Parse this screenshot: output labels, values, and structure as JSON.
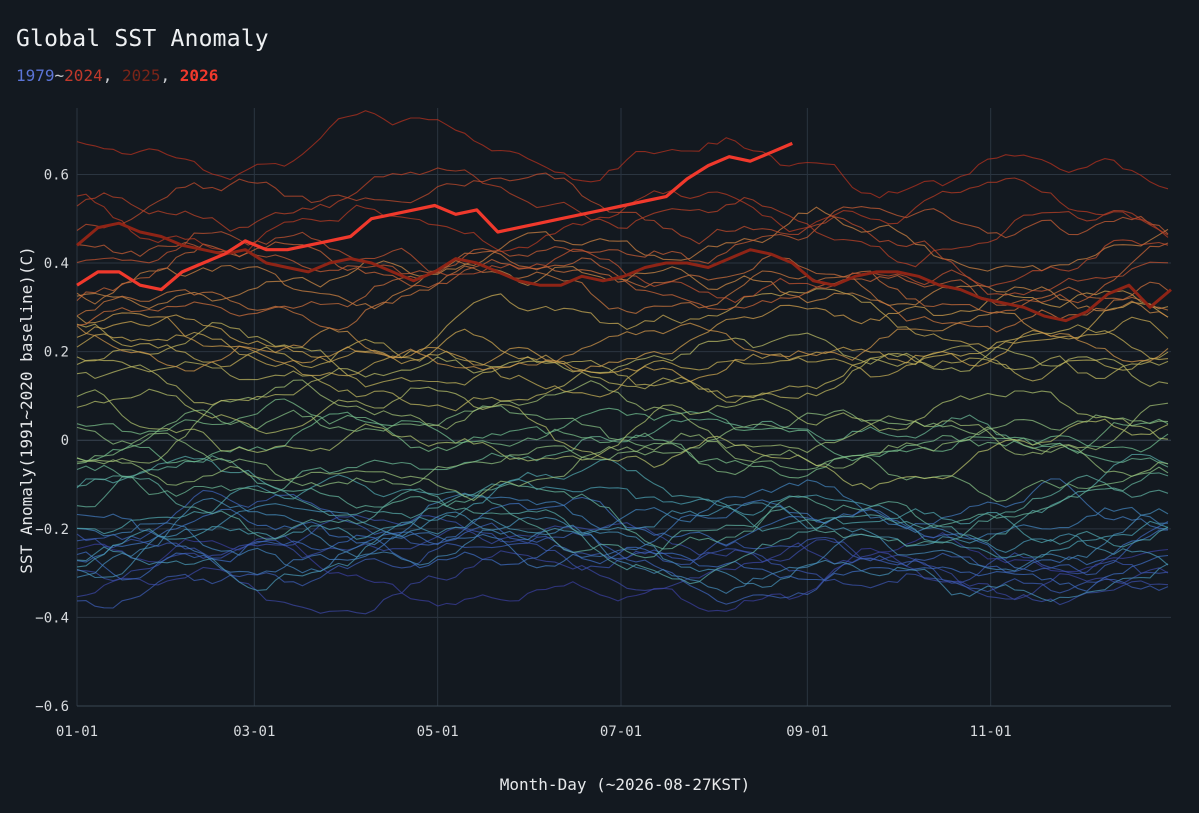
{
  "title": "Global SST Anomaly",
  "legend": {
    "first_year": "1979",
    "sep": "~",
    "last_year": "2024",
    "comma": ",",
    "year_2025": "2025",
    "year_2026": "2026"
  },
  "colors": {
    "background": "#131920",
    "grid": "#2b3540",
    "zero_line": "#3a4652",
    "year_2025": "#8e2416",
    "year_2026": "#f0392c"
  },
  "chart_data": {
    "type": "line",
    "xlabel": "Month-Day (~2026-08-27KST)",
    "ylabel": "SST Anomaly(1991~2020 baseline)(C)",
    "ylim": [
      -0.6,
      0.75
    ],
    "xlim": [
      1,
      365
    ],
    "y_ticks": [
      -0.6,
      -0.4,
      -0.2,
      0,
      0.2,
      0.4,
      0.6
    ],
    "y_tick_labels": [
      "−0.6",
      "−0.4",
      "−0.2",
      "0",
      "0.2",
      "0.4",
      "0.6"
    ],
    "x_ticks": [
      1,
      60,
      121,
      182,
      244,
      305
    ],
    "x_tick_labels": [
      "01-01",
      "03-01",
      "05-01",
      "07-01",
      "09-01",
      "11-01"
    ],
    "grid": true,
    "historical_years": {
      "first": 1979,
      "last": 2024,
      "color_scale": [
        "#3a3f9e",
        "#3f6fc2",
        "#4aa0b4",
        "#74c08e",
        "#b6c26a",
        "#d2a84f",
        "#d06a3a",
        "#b8321f"
      ],
      "approx_anomaly_start": -0.3,
      "approx_anomaly_end": 0.6
    },
    "series": [
      {
        "name": "2025",
        "x": [
          1,
          8,
          15,
          22,
          29,
          36,
          43,
          50,
          57,
          64,
          71,
          78,
          85,
          92,
          99,
          106,
          113,
          120,
          127,
          134,
          141,
          148,
          155,
          162,
          169,
          176,
          183,
          190,
          197,
          204,
          211,
          218,
          225,
          232,
          239,
          246,
          253,
          260,
          267,
          274,
          281,
          288,
          295,
          302,
          309,
          316,
          323,
          330,
          337,
          344,
          351,
          358,
          365
        ],
        "values": [
          0.44,
          0.48,
          0.49,
          0.47,
          0.46,
          0.44,
          0.43,
          0.42,
          0.43,
          0.4,
          0.39,
          0.38,
          0.4,
          0.41,
          0.4,
          0.38,
          0.36,
          0.38,
          0.41,
          0.4,
          0.38,
          0.36,
          0.35,
          0.35,
          0.37,
          0.36,
          0.37,
          0.39,
          0.4,
          0.4,
          0.39,
          0.41,
          0.43,
          0.42,
          0.4,
          0.36,
          0.35,
          0.37,
          0.38,
          0.38,
          0.37,
          0.35,
          0.34,
          0.32,
          0.31,
          0.3,
          0.28,
          0.27,
          0.29,
          0.33,
          0.35,
          0.3,
          0.34
        ]
      },
      {
        "name": "2026",
        "x": [
          1,
          8,
          15,
          22,
          29,
          36,
          43,
          50,
          57,
          64,
          71,
          78,
          85,
          92,
          99,
          106,
          113,
          120,
          127,
          134,
          141,
          148,
          155,
          162,
          169,
          176,
          183,
          190,
          197,
          204,
          211,
          218,
          225,
          232,
          239
        ],
        "values": [
          0.35,
          0.38,
          0.38,
          0.35,
          0.34,
          0.38,
          0.4,
          0.42,
          0.45,
          0.43,
          0.43,
          0.44,
          0.45,
          0.46,
          0.5,
          0.51,
          0.52,
          0.53,
          0.51,
          0.52,
          0.47,
          0.48,
          0.49,
          0.5,
          0.51,
          0.52,
          0.53,
          0.54,
          0.55,
          0.59,
          0.62,
          0.64,
          0.63,
          0.65,
          0.67
        ]
      }
    ]
  }
}
